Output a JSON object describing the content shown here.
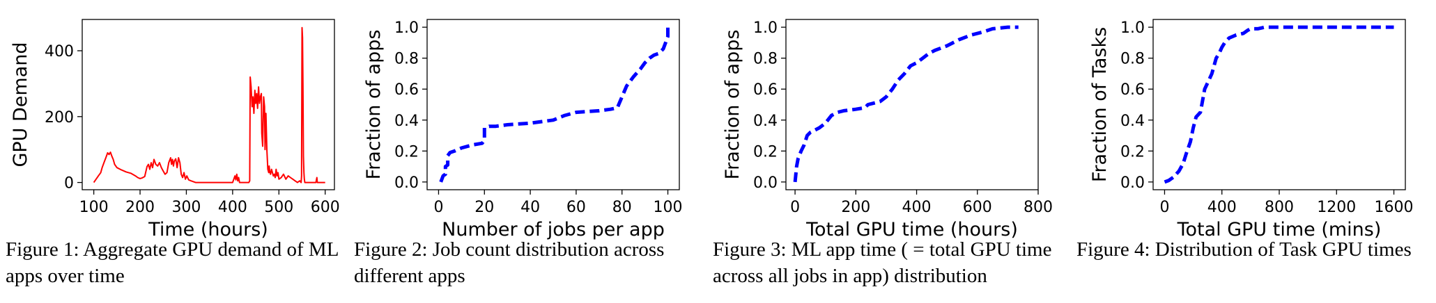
{
  "chart_data": [
    {
      "type": "line",
      "xlabel": "Time (hours)",
      "ylabel": "GPU Demand",
      "xlim": [
        75,
        620
      ],
      "ylim": [
        -22,
        495
      ],
      "xticks": [
        100,
        200,
        300,
        400,
        500,
        600
      ],
      "yticks": [
        0,
        200,
        400
      ],
      "line_color": "#ff0000",
      "line_style": "solid",
      "series": [
        {
          "x": [
            100,
            105,
            110,
            115,
            118,
            122,
            126,
            130,
            133,
            136,
            139,
            142,
            145,
            150,
            160,
            170,
            180,
            190,
            195,
            200,
            205,
            210,
            212,
            215,
            218,
            221,
            224,
            227,
            230,
            234,
            238,
            242,
            246,
            250,
            254,
            258,
            262,
            266,
            268,
            270,
            272,
            274,
            277,
            280,
            283,
            286,
            289,
            292,
            295,
            298,
            301,
            305,
            310,
            320,
            330,
            340,
            360,
            380,
            400,
            405,
            407,
            409,
            411,
            413,
            415,
            418,
            430,
            435,
            437,
            438,
            440,
            442,
            444,
            446,
            448,
            450,
            452,
            454,
            456,
            458,
            460,
            462,
            463,
            465,
            467,
            469,
            470,
            472,
            474,
            476,
            478,
            479,
            480,
            482,
            484,
            486,
            488,
            490,
            492,
            494,
            496,
            498,
            500,
            505,
            510,
            515,
            520,
            525,
            530,
            535,
            540,
            545,
            548,
            549,
            550,
            551,
            552,
            553,
            554,
            555,
            556,
            558,
            565,
            575,
            580,
            582,
            583,
            585,
            600
          ],
          "y": [
            0,
            10,
            20,
            30,
            45,
            60,
            75,
            90,
            85,
            92,
            80,
            70,
            55,
            45,
            38,
            32,
            28,
            20,
            15,
            12,
            14,
            18,
            30,
            48,
            55,
            40,
            60,
            45,
            70,
            55,
            50,
            60,
            45,
            35,
            25,
            30,
            60,
            75,
            55,
            70,
            50,
            65,
            72,
            45,
            75,
            60,
            25,
            15,
            30,
            10,
            20,
            8,
            5,
            0,
            0,
            0,
            0,
            0,
            0,
            20,
            8,
            25,
            5,
            15,
            0,
            0,
            0,
            0,
            5,
            320,
            290,
            230,
            260,
            210,
            280,
            240,
            270,
            225,
            290,
            240,
            260,
            270,
            150,
            110,
            260,
            230,
            100,
            210,
            100,
            40,
            30,
            50,
            35,
            25,
            40,
            30,
            20,
            25,
            15,
            40,
            20,
            30,
            10,
            15,
            25,
            10,
            20,
            15,
            10,
            5,
            0,
            5,
            0,
            20,
            470,
            440,
            300,
            80,
            30,
            10,
            0,
            0,
            0,
            0,
            0,
            15,
            0,
            0,
            0
          ]
        }
      ]
    },
    {
      "type": "line",
      "xlabel": "Number of jobs per app",
      "ylabel": "Fraction of apps",
      "xlim": [
        -5,
        105
      ],
      "ylim": [
        -0.05,
        1.05
      ],
      "xticks": [
        0,
        20,
        40,
        60,
        80,
        100
      ],
      "yticks": [
        0.0,
        0.2,
        0.4,
        0.6,
        0.8,
        1.0
      ],
      "line_color": "#0000ff",
      "line_style": "dashed",
      "series": [
        {
          "x": [
            1,
            2,
            3,
            3,
            4,
            4,
            5,
            7,
            10,
            15,
            19,
            20,
            20,
            22,
            25,
            30,
            40,
            50,
            55,
            60,
            70,
            75,
            78,
            80,
            82,
            85,
            88,
            90,
            92,
            94,
            96,
            98,
            99,
            100,
            100
          ],
          "y": [
            0.0,
            0.04,
            0.05,
            0.1,
            0.11,
            0.17,
            0.19,
            0.2,
            0.22,
            0.24,
            0.25,
            0.27,
            0.35,
            0.36,
            0.36,
            0.37,
            0.38,
            0.4,
            0.43,
            0.45,
            0.46,
            0.47,
            0.48,
            0.55,
            0.62,
            0.68,
            0.73,
            0.77,
            0.8,
            0.82,
            0.83,
            0.86,
            0.9,
            0.94,
            1.0
          ]
        }
      ]
    },
    {
      "type": "line",
      "xlabel": "Total GPU time (hours)",
      "ylabel": "Fraction of apps",
      "xlim": [
        -30,
        800
      ],
      "ylim": [
        -0.05,
        1.05
      ],
      "xticks": [
        0,
        200,
        400,
        600,
        800
      ],
      "yticks": [
        0.0,
        0.2,
        0.4,
        0.6,
        0.8,
        1.0
      ],
      "line_color": "#0000ff",
      "line_style": "dashed",
      "series": [
        {
          "x": [
            0,
            2,
            5,
            10,
            20,
            30,
            40,
            50,
            60,
            80,
            100,
            120,
            140,
            160,
            200,
            230,
            240,
            260,
            280,
            300,
            320,
            340,
            360,
            380,
            400,
            420,
            440,
            460,
            500,
            540,
            580,
            620,
            650,
            700,
            735
          ],
          "y": [
            0.0,
            0.04,
            0.1,
            0.15,
            0.2,
            0.24,
            0.3,
            0.32,
            0.33,
            0.35,
            0.38,
            0.43,
            0.45,
            0.46,
            0.47,
            0.48,
            0.5,
            0.51,
            0.52,
            0.55,
            0.6,
            0.66,
            0.7,
            0.75,
            0.77,
            0.8,
            0.83,
            0.85,
            0.88,
            0.92,
            0.95,
            0.97,
            0.99,
            1.0,
            1.0
          ]
        }
      ]
    },
    {
      "type": "line",
      "xlabel": "Total GPU time (mins)",
      "ylabel": "Fraction of Tasks",
      "xlim": [
        -80,
        1680
      ],
      "ylim": [
        -0.05,
        1.05
      ],
      "xticks": [
        0,
        400,
        800,
        1200,
        1600
      ],
      "yticks": [
        0.0,
        0.2,
        0.4,
        0.6,
        0.8,
        1.0
      ],
      "line_color": "#0000ff",
      "line_style": "dashed",
      "series": [
        {
          "x": [
            0,
            30,
            60,
            100,
            130,
            150,
            180,
            200,
            220,
            250,
            280,
            300,
            330,
            360,
            380,
            400,
            420,
            450,
            500,
            550,
            580,
            600,
            650,
            700,
            800,
            900,
            1000,
            1200,
            1400,
            1600
          ],
          "y": [
            0.0,
            0.01,
            0.03,
            0.07,
            0.12,
            0.18,
            0.26,
            0.35,
            0.42,
            0.45,
            0.6,
            0.64,
            0.7,
            0.8,
            0.83,
            0.87,
            0.9,
            0.93,
            0.95,
            0.96,
            0.98,
            0.99,
            0.99,
            1.0,
            1.0,
            1.0,
            1.0,
            1.0,
            1.0,
            1.0
          ]
        }
      ]
    }
  ],
  "captions": [
    "Figure 1: Aggregate GPU demand of ML apps over time",
    "Figure 2: Job count distribution across different apps",
    "Figure 3: ML app time ( = total GPU time across all jobs in app) distribution",
    "Figure 4: Distribution of Task GPU times"
  ]
}
